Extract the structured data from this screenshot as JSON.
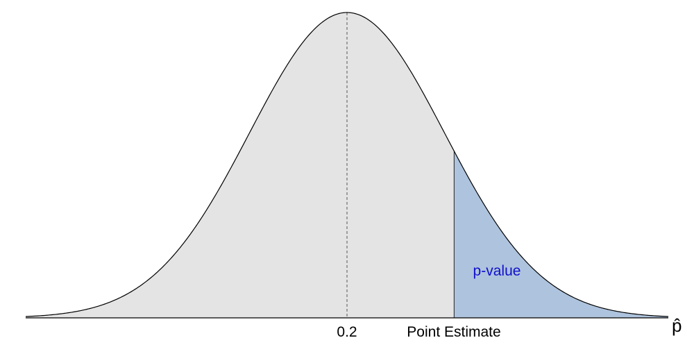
{
  "chart_data": {
    "type": "area",
    "title": "",
    "xlabel": "p̂",
    "ylabel": "",
    "distribution": "normal",
    "mean": 0.2,
    "sd": 1,
    "xlim": [
      -3.3,
      3.3
    ],
    "point_estimate": 1.1,
    "tick_labels": {
      "mean": "0.2",
      "point_estimate": "Point Estimate"
    },
    "annotations": {
      "tail_label": "p-value"
    },
    "colors": {
      "body_fill": "#e4e4e4",
      "tail_fill": "#aec3dd",
      "curve": "#000000",
      "mean_line": "#777777",
      "tail_label": "#1010cc"
    },
    "grid": false,
    "legend": "none"
  }
}
